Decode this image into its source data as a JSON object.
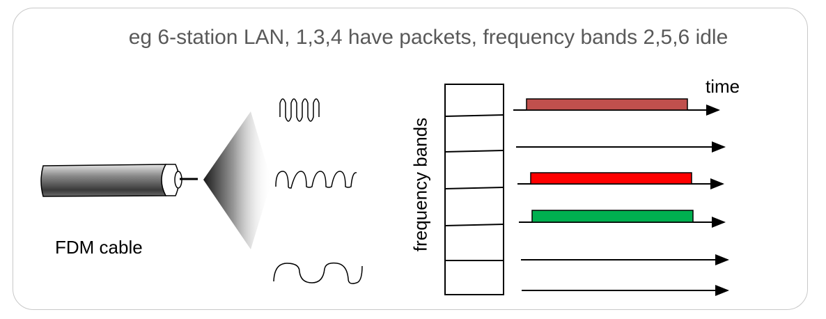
{
  "title": "eg 6-station LAN, 1,3,4 have packets, frequency bands 2,5,6 idle",
  "cable_label": "FDM cable",
  "axis_time_label": "time",
  "axis_frequency_label": "frequency bands",
  "colors": {
    "band1_packet": "#c0504d",
    "band3_packet": "#ff0000",
    "band4_packet": "#00b050",
    "title_text": "#595959",
    "frame_border": "#c8c8c8"
  },
  "bands": [
    {
      "band": 1,
      "has_packet": true
    },
    {
      "band": 2,
      "has_packet": false
    },
    {
      "band": 3,
      "has_packet": true
    },
    {
      "band": 4,
      "has_packet": true
    },
    {
      "band": 5,
      "has_packet": false
    },
    {
      "band": 6,
      "has_packet": false
    }
  ]
}
